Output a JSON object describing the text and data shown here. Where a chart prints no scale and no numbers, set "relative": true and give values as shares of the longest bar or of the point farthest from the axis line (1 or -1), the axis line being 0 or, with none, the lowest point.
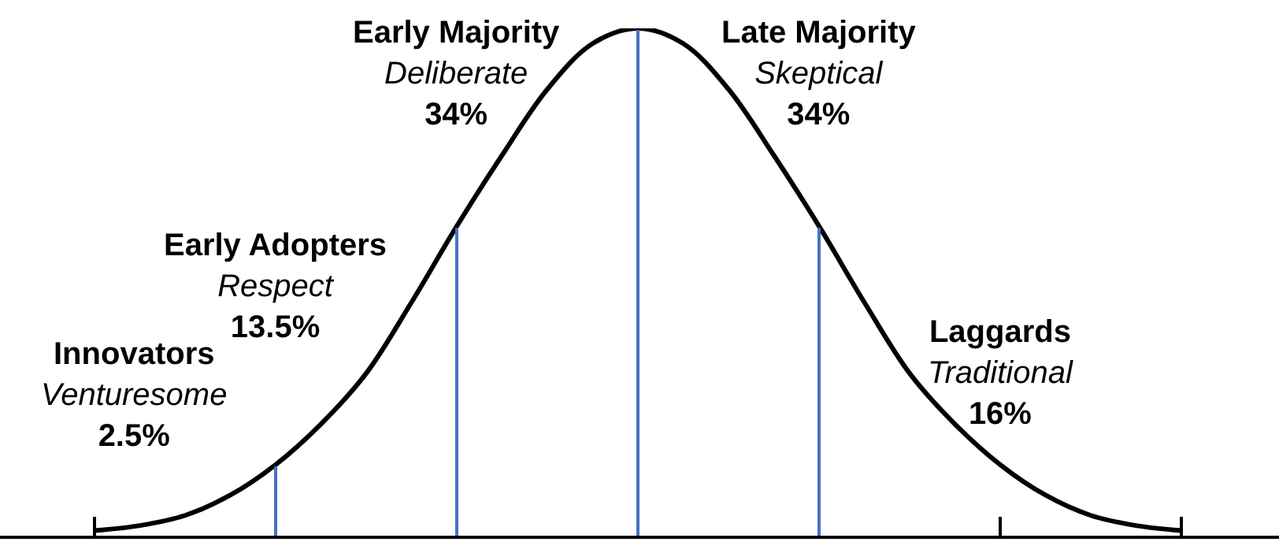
{
  "chart_data": {
    "type": "line",
    "relative": true,
    "categories": [
      null,
      null,
      null,
      null,
      null,
      null,
      null,
      null,
      null,
      null,
      null,
      null,
      null,
      null,
      null,
      null,
      null,
      null,
      null,
      null,
      null,
      null,
      null,
      null,
      null
    ],
    "series": [
      {
        "color": "#000000",
        "values": [
          0.01,
          0.02,
          0.04,
          0.08,
          0.14,
          0.22,
          0.32,
          0.46,
          0.61,
          0.75,
          0.88,
          0.97,
          1,
          0.97,
          0.88,
          0.75,
          0.61,
          0.46,
          0.32,
          0.22,
          0.14,
          0.08,
          0.04,
          0.02,
          0.01
        ]
      }
    ],
    "annotations": [
      "Innovators\nVenturesome\n2.5%",
      "Early Adopters\nRespect\n13.5%",
      "Early Majority\nDeliberate\n34%",
      "Late Majority\nSkeptical\n34%",
      "Laggards\nTraditional\n16%"
    ],
    "marker": "none",
    "line_style": "solid"
  }
}
